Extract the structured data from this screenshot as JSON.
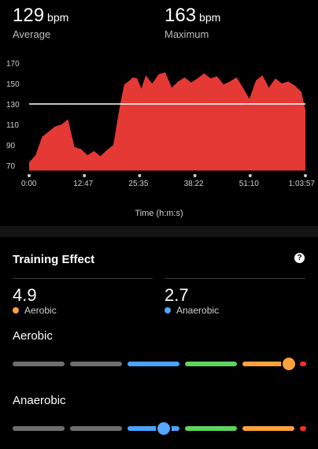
{
  "summary": {
    "average": {
      "value": "129",
      "unit": "bpm",
      "label": "Average"
    },
    "maximum": {
      "value": "163",
      "unit": "bpm",
      "label": "Maximum"
    }
  },
  "chart_data": {
    "type": "area",
    "title": "",
    "xlabel": "Time (h:m:s)",
    "ylabel": "",
    "y_ticks": [
      170,
      150,
      130,
      110,
      90,
      70
    ],
    "ylim": [
      65,
      180
    ],
    "x_ticks": [
      "0:00",
      "12:47",
      "25:35",
      "38:22",
      "51:10",
      "1:03:57"
    ],
    "xlim_seconds": [
      0,
      3837
    ],
    "reference_line": {
      "value": 130,
      "label": "Average",
      "color": "#ffffff"
    },
    "fill_color": "#e53935",
    "series": [
      {
        "x_seconds": [
          0,
          90,
          180,
          270,
          360,
          450,
          540,
          630,
          720,
          810,
          900,
          990,
          1080,
          1170,
          1260,
          1320,
          1380,
          1440,
          1500,
          1560,
          1620,
          1710,
          1800,
          1890,
          1980,
          2070,
          2160,
          2250,
          2340,
          2430,
          2520,
          2610,
          2700,
          2790,
          2880,
          2970,
          3060,
          3150,
          3240,
          3330,
          3420,
          3510,
          3600,
          3690,
          3780,
          3837
        ],
        "y_bpm": [
          73,
          80,
          98,
          103,
          108,
          110,
          115,
          88,
          86,
          80,
          84,
          79,
          85,
          90,
          128,
          149,
          152,
          156,
          155,
          145,
          158,
          150,
          159,
          161,
          146,
          152,
          156,
          151,
          155,
          160,
          155,
          157,
          149,
          152,
          156,
          146,
          135,
          153,
          158,
          146,
          155,
          150,
          152,
          148,
          142,
          124
        ]
      }
    ]
  },
  "training_effect": {
    "title": "Training Effect",
    "help_icon": "?",
    "aerobic": {
      "value": "4.9",
      "label": "Aerobic",
      "color": "#ffa23c"
    },
    "anaerobic": {
      "value": "2.7",
      "label": "Anaerobic",
      "color": "#55a6ff"
    }
  },
  "scales": {
    "aerobic": {
      "title": "Aerobic",
      "level": 4.9
    },
    "anaerobic": {
      "title": "Anaerobic",
      "level": 2.7
    },
    "segment_colors": [
      "#6e6e6e",
      "#6e6e6e",
      "#4aa3ff",
      "#5fd35f",
      "#ffa23c",
      "#ff2a2a"
    ]
  }
}
